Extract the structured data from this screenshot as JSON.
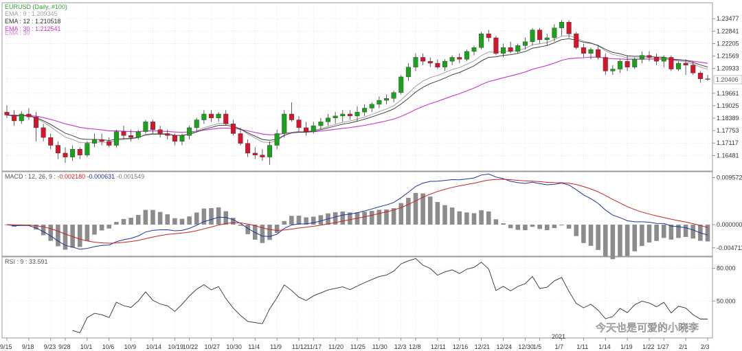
{
  "colors": {
    "background": "#ffffff",
    "grid": "#d9d9d9",
    "frame": "#9a9a9a",
    "up_candle": "#1aa31a",
    "down_candle": "#d4152b",
    "ema9": "#a0a0a0",
    "ema12": "#303030",
    "ema30": "#cc33cc",
    "macd_line": "#2030a0",
    "signal_line": "#cc2020",
    "histogram": "#8c8c8c",
    "rsi_line": "#303030",
    "title_green": "#2e9e2e"
  },
  "price_panel": {
    "title": "EURUSD (Daily, #100)",
    "legend": [
      {
        "text": "EMA : 9 : 1.209345",
        "color_key": "ema9"
      },
      {
        "text": "EMA : 12 : 1.210518",
        "color_key": "ema12"
      },
      {
        "text": "EMA : 30 : 1.212541",
        "color_key": "ema30"
      },
      {
        "text": "EMA : 30",
        "color_key": "ema30"
      }
    ],
    "y_ticks": [
      "1.23477",
      "1.22841",
      "1.22205",
      "1.21569",
      "1.20933",
      "1.20406",
      "1.19661",
      "1.19025",
      "1.18389",
      "1.17753",
      "1.17117",
      "1.16481"
    ],
    "current_price_label": "1.20406"
  },
  "macd_panel": {
    "header": "MACD : 12, 26, 9 :",
    "macd_value": "-0.002180",
    "signal_value": "-0.000631",
    "hist_value": "-0.001549",
    "y_ticks": [
      "0.009572",
      "0.000000",
      "-0.004711"
    ]
  },
  "rsi_panel": {
    "header": "RSI : 9 : 33.591",
    "y_ticks": [
      "80.000",
      "50.000"
    ]
  },
  "x_axis": {
    "labels": [
      "9/15",
      "9/18",
      "9/23",
      "9/28",
      "10/1",
      "10/6",
      "10/9",
      "10/14",
      "10/19",
      "10/22",
      "10/27",
      "10/30",
      "11/4",
      "11/9",
      "11/12",
      "11/17",
      "11/20",
      "11/25",
      "11/30",
      "12/3",
      "12/8",
      "12/11",
      "12/16",
      "12/21",
      "12/24",
      "12/30",
      "1/5",
      "1/7",
      "1/11",
      "1/14",
      "1/19",
      "1/22",
      "1/27",
      "2/1",
      "2/3"
    ],
    "year_label": "2021"
  },
  "watermark": "今天也是可爱的小晓李",
  "chart_data": [
    {
      "type": "candlestick",
      "title": "EURUSD (Daily, #100)",
      "ylim": [
        1.16,
        1.238
      ],
      "ohlc": [
        [
          1.187,
          1.1905,
          1.184,
          1.1855
        ],
        [
          1.1855,
          1.188,
          1.18,
          1.1825
        ],
        [
          1.1825,
          1.1875,
          1.181,
          1.186
        ],
        [
          1.186,
          1.189,
          1.183,
          1.1845
        ],
        [
          1.1845,
          1.187,
          1.172,
          1.179
        ],
        [
          1.179,
          1.181,
          1.172,
          1.174
        ],
        [
          1.174,
          1.176,
          1.168,
          1.17
        ],
        [
          1.17,
          1.172,
          1.163,
          1.166
        ],
        [
          1.166,
          1.169,
          1.161,
          1.164
        ],
        [
          1.164,
          1.17,
          1.162,
          1.168
        ],
        [
          1.168,
          1.169,
          1.163,
          1.165
        ],
        [
          1.165,
          1.172,
          1.164,
          1.171
        ],
        [
          1.171,
          1.176,
          1.169,
          1.173
        ],
        [
          1.173,
          1.176,
          1.17,
          1.172
        ],
        [
          1.172,
          1.174,
          1.169,
          1.17
        ],
        [
          1.17,
          1.178,
          1.169,
          1.177
        ],
        [
          1.177,
          1.18,
          1.173,
          1.175
        ],
        [
          1.175,
          1.178,
          1.172,
          1.174
        ],
        [
          1.174,
          1.178,
          1.173,
          1.177
        ],
        [
          1.177,
          1.183,
          1.176,
          1.182
        ],
        [
          1.182,
          1.183,
          1.176,
          1.178
        ],
        [
          1.178,
          1.18,
          1.174,
          1.176
        ],
        [
          1.176,
          1.178,
          1.173,
          1.175
        ],
        [
          1.175,
          1.176,
          1.17,
          1.172
        ],
        [
          1.172,
          1.176,
          1.17,
          1.175
        ],
        [
          1.175,
          1.18,
          1.173,
          1.179
        ],
        [
          1.179,
          1.184,
          1.177,
          1.183
        ],
        [
          1.183,
          1.188,
          1.181,
          1.186
        ],
        [
          1.186,
          1.188,
          1.182,
          1.184
        ],
        [
          1.184,
          1.187,
          1.182,
          1.186
        ],
        [
          1.186,
          1.188,
          1.18,
          1.181
        ],
        [
          1.181,
          1.183,
          1.175,
          1.176
        ],
        [
          1.176,
          1.179,
          1.17,
          1.171
        ],
        [
          1.171,
          1.173,
          1.164,
          1.166
        ],
        [
          1.166,
          1.169,
          1.163,
          1.165
        ],
        [
          1.165,
          1.168,
          1.162,
          1.164
        ],
        [
          1.164,
          1.172,
          1.16,
          1.17
        ],
        [
          1.17,
          1.178,
          1.168,
          1.176
        ],
        [
          1.176,
          1.188,
          1.174,
          1.186
        ],
        [
          1.186,
          1.192,
          1.182,
          1.183
        ],
        [
          1.183,
          1.185,
          1.177,
          1.179
        ],
        [
          1.179,
          1.182,
          1.175,
          1.177
        ],
        [
          1.177,
          1.182,
          1.176,
          1.18
        ],
        [
          1.18,
          1.184,
          1.178,
          1.182
        ],
        [
          1.182,
          1.186,
          1.18,
          1.184
        ],
        [
          1.184,
          1.187,
          1.181,
          1.185
        ],
        [
          1.185,
          1.188,
          1.182,
          1.186
        ],
        [
          1.186,
          1.188,
          1.183,
          1.185
        ],
        [
          1.185,
          1.19,
          1.182,
          1.187
        ],
        [
          1.187,
          1.191,
          1.185,
          1.189
        ],
        [
          1.189,
          1.192,
          1.187,
          1.191
        ],
        [
          1.191,
          1.195,
          1.189,
          1.193
        ],
        [
          1.193,
          1.196,
          1.191,
          1.194
        ],
        [
          1.194,
          1.198,
          1.192,
          1.197
        ],
        [
          1.197,
          1.206,
          1.196,
          1.205
        ],
        [
          1.205,
          1.212,
          1.203,
          1.21
        ],
        [
          1.21,
          1.217,
          1.208,
          1.215
        ],
        [
          1.215,
          1.217,
          1.211,
          1.213
        ],
        [
          1.213,
          1.215,
          1.21,
          1.212
        ],
        [
          1.212,
          1.214,
          1.209,
          1.21
        ],
        [
          1.21,
          1.214,
          1.208,
          1.213
        ],
        [
          1.213,
          1.216,
          1.211,
          1.215
        ],
        [
          1.215,
          1.217,
          1.212,
          1.214
        ],
        [
          1.214,
          1.219,
          1.213,
          1.218
        ],
        [
          1.218,
          1.221,
          1.216,
          1.22
        ],
        [
          1.22,
          1.228,
          1.219,
          1.227
        ],
        [
          1.227,
          1.229,
          1.223,
          1.225
        ],
        [
          1.225,
          1.226,
          1.216,
          1.217
        ],
        [
          1.217,
          1.222,
          1.215,
          1.22
        ],
        [
          1.22,
          1.223,
          1.217,
          1.218
        ],
        [
          1.218,
          1.222,
          1.217,
          1.221
        ],
        [
          1.221,
          1.225,
          1.219,
          1.223
        ],
        [
          1.223,
          1.23,
          1.221,
          1.229
        ],
        [
          1.229,
          1.23,
          1.222,
          1.224
        ],
        [
          1.224,
          1.227,
          1.221,
          1.225
        ],
        [
          1.225,
          1.232,
          1.223,
          1.23
        ],
        [
          1.23,
          1.234,
          1.226,
          1.233
        ],
        [
          1.233,
          1.234,
          1.225,
          1.227
        ],
        [
          1.227,
          1.228,
          1.219,
          1.22
        ],
        [
          1.22,
          1.222,
          1.215,
          1.217
        ],
        [
          1.217,
          1.22,
          1.214,
          1.219
        ],
        [
          1.219,
          1.221,
          1.214,
          1.215
        ],
        [
          1.215,
          1.217,
          1.206,
          1.208
        ],
        [
          1.208,
          1.211,
          1.206,
          1.209
        ],
        [
          1.209,
          1.214,
          1.207,
          1.213
        ],
        [
          1.213,
          1.216,
          1.208,
          1.21
        ],
        [
          1.21,
          1.215,
          1.209,
          1.214
        ],
        [
          1.214,
          1.218,
          1.212,
          1.216
        ],
        [
          1.216,
          1.218,
          1.213,
          1.215
        ],
        [
          1.215,
          1.217,
          1.211,
          1.213
        ],
        [
          1.213,
          1.216,
          1.21,
          1.215
        ],
        [
          1.215,
          1.216,
          1.208,
          1.209
        ],
        [
          1.209,
          1.213,
          1.208,
          1.212
        ],
        [
          1.212,
          1.214,
          1.206,
          1.211
        ],
        [
          1.211,
          1.213,
          1.206,
          1.207
        ],
        [
          1.207,
          1.208,
          1.202,
          1.204
        ],
        [
          1.204,
          1.206,
          1.203,
          1.204
        ]
      ],
      "overlays": [
        {
          "name": "EMA : 9 : 1.209345",
          "period": 9
        },
        {
          "name": "EMA : 12 : 1.210518",
          "period": 12
        },
        {
          "name": "EMA : 30 : 1.212541",
          "period": 30
        }
      ]
    },
    {
      "type": "line",
      "title": "MACD : 12, 26, 9",
      "ylim": [
        -0.006,
        0.0102
      ],
      "x_label": "",
      "y_label": "",
      "series_from": "macd(12,26,9) of close prices",
      "histogram_from": "macd minus signal",
      "last_values": {
        "macd": -0.00218,
        "signal": -0.000631,
        "histogram": -0.001549
      }
    },
    {
      "type": "line",
      "title": "RSI : 9",
      "ylim": [
        18,
        88
      ],
      "period": 9,
      "last_value": 33.591
    }
  ]
}
